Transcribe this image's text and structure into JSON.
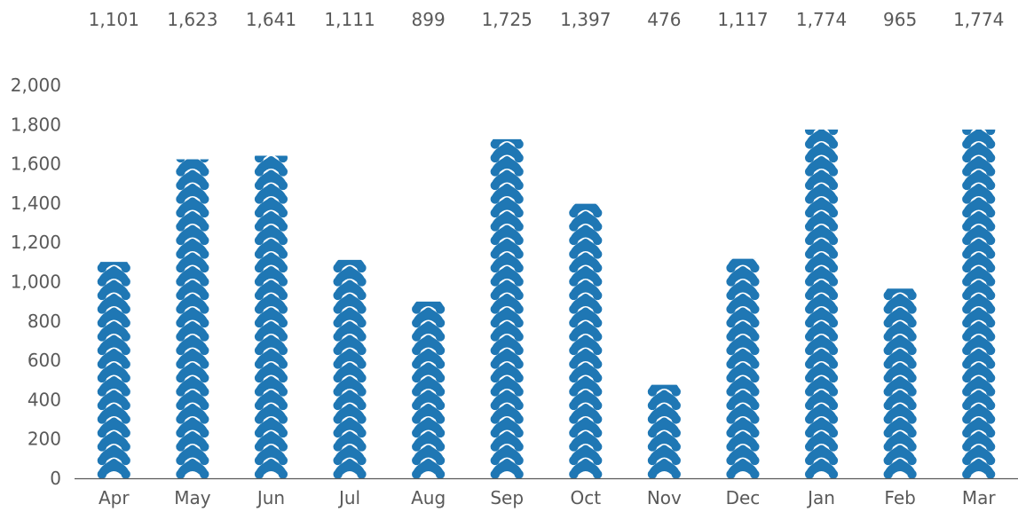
{
  "chart_data": {
    "type": "bar",
    "categories": [
      "Apr",
      "May",
      "Jun",
      "Jul",
      "Aug",
      "Sep",
      "Oct",
      "Nov",
      "Dec",
      "Jan",
      "Feb",
      "Mar"
    ],
    "values": [
      1101,
      1623,
      1641,
      1111,
      899,
      1725,
      1397,
      476,
      1117,
      1774,
      965,
      1774
    ],
    "value_labels": [
      "1,101",
      "1,623",
      "1,641",
      "1,111",
      "899",
      "1,725",
      "1,397",
      "476",
      "1,117",
      "1,774",
      "965",
      "1,774"
    ],
    "y_ticks": [
      0,
      200,
      400,
      600,
      800,
      1000,
      1200,
      1400,
      1600,
      1800,
      2000
    ],
    "y_tick_labels": [
      "0",
      "200",
      "400",
      "600",
      "800",
      "1,000",
      "1,200",
      "1,400",
      "1,600",
      "1,800",
      "2,000"
    ],
    "ylim": [
      0,
      2000
    ],
    "grid": false,
    "bar_style": "stacked-pictograph",
    "colors": {
      "bar": "#1f77b4",
      "axis": "#595959",
      "text": "#595959"
    }
  }
}
